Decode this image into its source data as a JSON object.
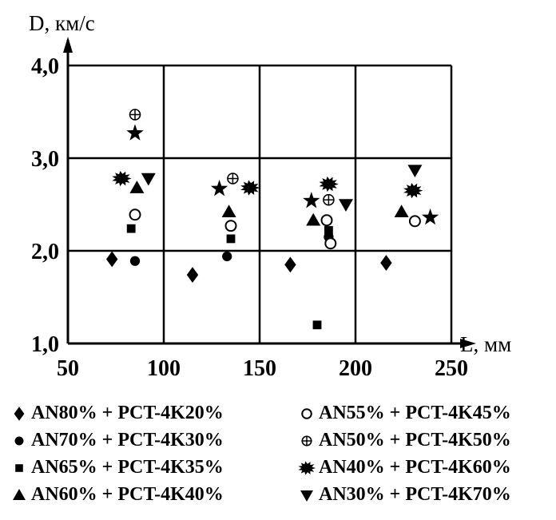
{
  "chart_data": {
    "type": "scatter",
    "title": "",
    "xlabel": "L, мм",
    "ylabel": "D, км/с",
    "xlim": [
      50,
      250
    ],
    "ylim": [
      1.0,
      4.0
    ],
    "x_ticks": [
      "50",
      "100",
      "150",
      "200",
      "250"
    ],
    "y_ticks": [
      "1,0",
      "2,0",
      "3,0",
      "4,0"
    ],
    "grid": true,
    "legend_position": "bottom",
    "series": [
      {
        "name": "AN80% + PCT-4K20%",
        "marker": "diamond",
        "points": [
          {
            "x": 73,
            "y": 1.91
          },
          {
            "x": 115,
            "y": 1.74
          },
          {
            "x": 166,
            "y": 1.85
          },
          {
            "x": 216,
            "y": 1.87
          }
        ]
      },
      {
        "name": "AN70% + PCT-4K30%",
        "marker": "circle-filled",
        "points": [
          {
            "x": 85,
            "y": 1.89
          },
          {
            "x": 133,
            "y": 1.94
          },
          {
            "x": 186,
            "y": 2.15
          }
        ]
      },
      {
        "name": "AN65% + PCT-4K35%",
        "marker": "square",
        "points": [
          {
            "x": 83,
            "y": 2.24
          },
          {
            "x": 135,
            "y": 2.13
          },
          {
            "x": 180,
            "y": 1.2
          },
          {
            "x": 186,
            "y": 2.22
          }
        ]
      },
      {
        "name": "AN60% + PCT-4K40%",
        "marker": "triangle-up",
        "points": [
          {
            "x": 86,
            "y": 2.68
          },
          {
            "x": 134,
            "y": 2.42
          },
          {
            "x": 178,
            "y": 2.33
          },
          {
            "x": 224,
            "y": 2.42
          }
        ]
      },
      {
        "name": "AN55% + PCT-4K45%",
        "marker": "circle-open",
        "points": [
          {
            "x": 85,
            "y": 2.39
          },
          {
            "x": 135,
            "y": 2.27
          },
          {
            "x": 185,
            "y": 2.33
          },
          {
            "x": 187,
            "y": 2.08
          },
          {
            "x": 231,
            "y": 2.32
          }
        ]
      },
      {
        "name": "AN50% + PCT-4K50%",
        "marker": "circle-cross",
        "points": [
          {
            "x": 85,
            "y": 3.47
          },
          {
            "x": 136,
            "y": 2.78
          },
          {
            "x": 186,
            "y": 2.55
          }
        ]
      },
      {
        "name": "AN40% + PCT-4K60%",
        "marker": "burst",
        "points": [
          {
            "x": 78,
            "y": 2.78
          },
          {
            "x": 145,
            "y": 2.68
          },
          {
            "x": 186,
            "y": 2.72
          },
          {
            "x": 230,
            "y": 2.65
          }
        ]
      },
      {
        "name": "AN30% + PCT-4K70%",
        "marker": "triangle-down",
        "points": [
          {
            "x": 92,
            "y": 2.78
          },
          {
            "x": 195,
            "y": 2.5
          },
          {
            "x": 231,
            "y": 2.87
          }
        ]
      },
      {
        "name": "",
        "marker": "star",
        "points": [
          {
            "x": 85,
            "y": 3.27
          },
          {
            "x": 129,
            "y": 2.67
          },
          {
            "x": 177,
            "y": 2.54
          },
          {
            "x": 239,
            "y": 2.36
          }
        ]
      }
    ],
    "legend": [
      {
        "marker": "diamond",
        "label": "AN80% + PCT-4K20%"
      },
      {
        "marker": "circle-open",
        "label": "AN55% + PCT-4K45%"
      },
      {
        "marker": "circle-filled",
        "label": "AN70% + PCT-4K30%"
      },
      {
        "marker": "circle-cross",
        "label": "AN50% + PCT-4K50%"
      },
      {
        "marker": "square",
        "label": "AN65% + PCT-4K35%"
      },
      {
        "marker": "burst",
        "label": "AN40% + PCT-4K60%"
      },
      {
        "marker": "triangle-up",
        "label": "AN60% + PCT-4K40%"
      },
      {
        "marker": "triangle-down",
        "label": "AN30% + PCT-4K70%"
      }
    ]
  }
}
